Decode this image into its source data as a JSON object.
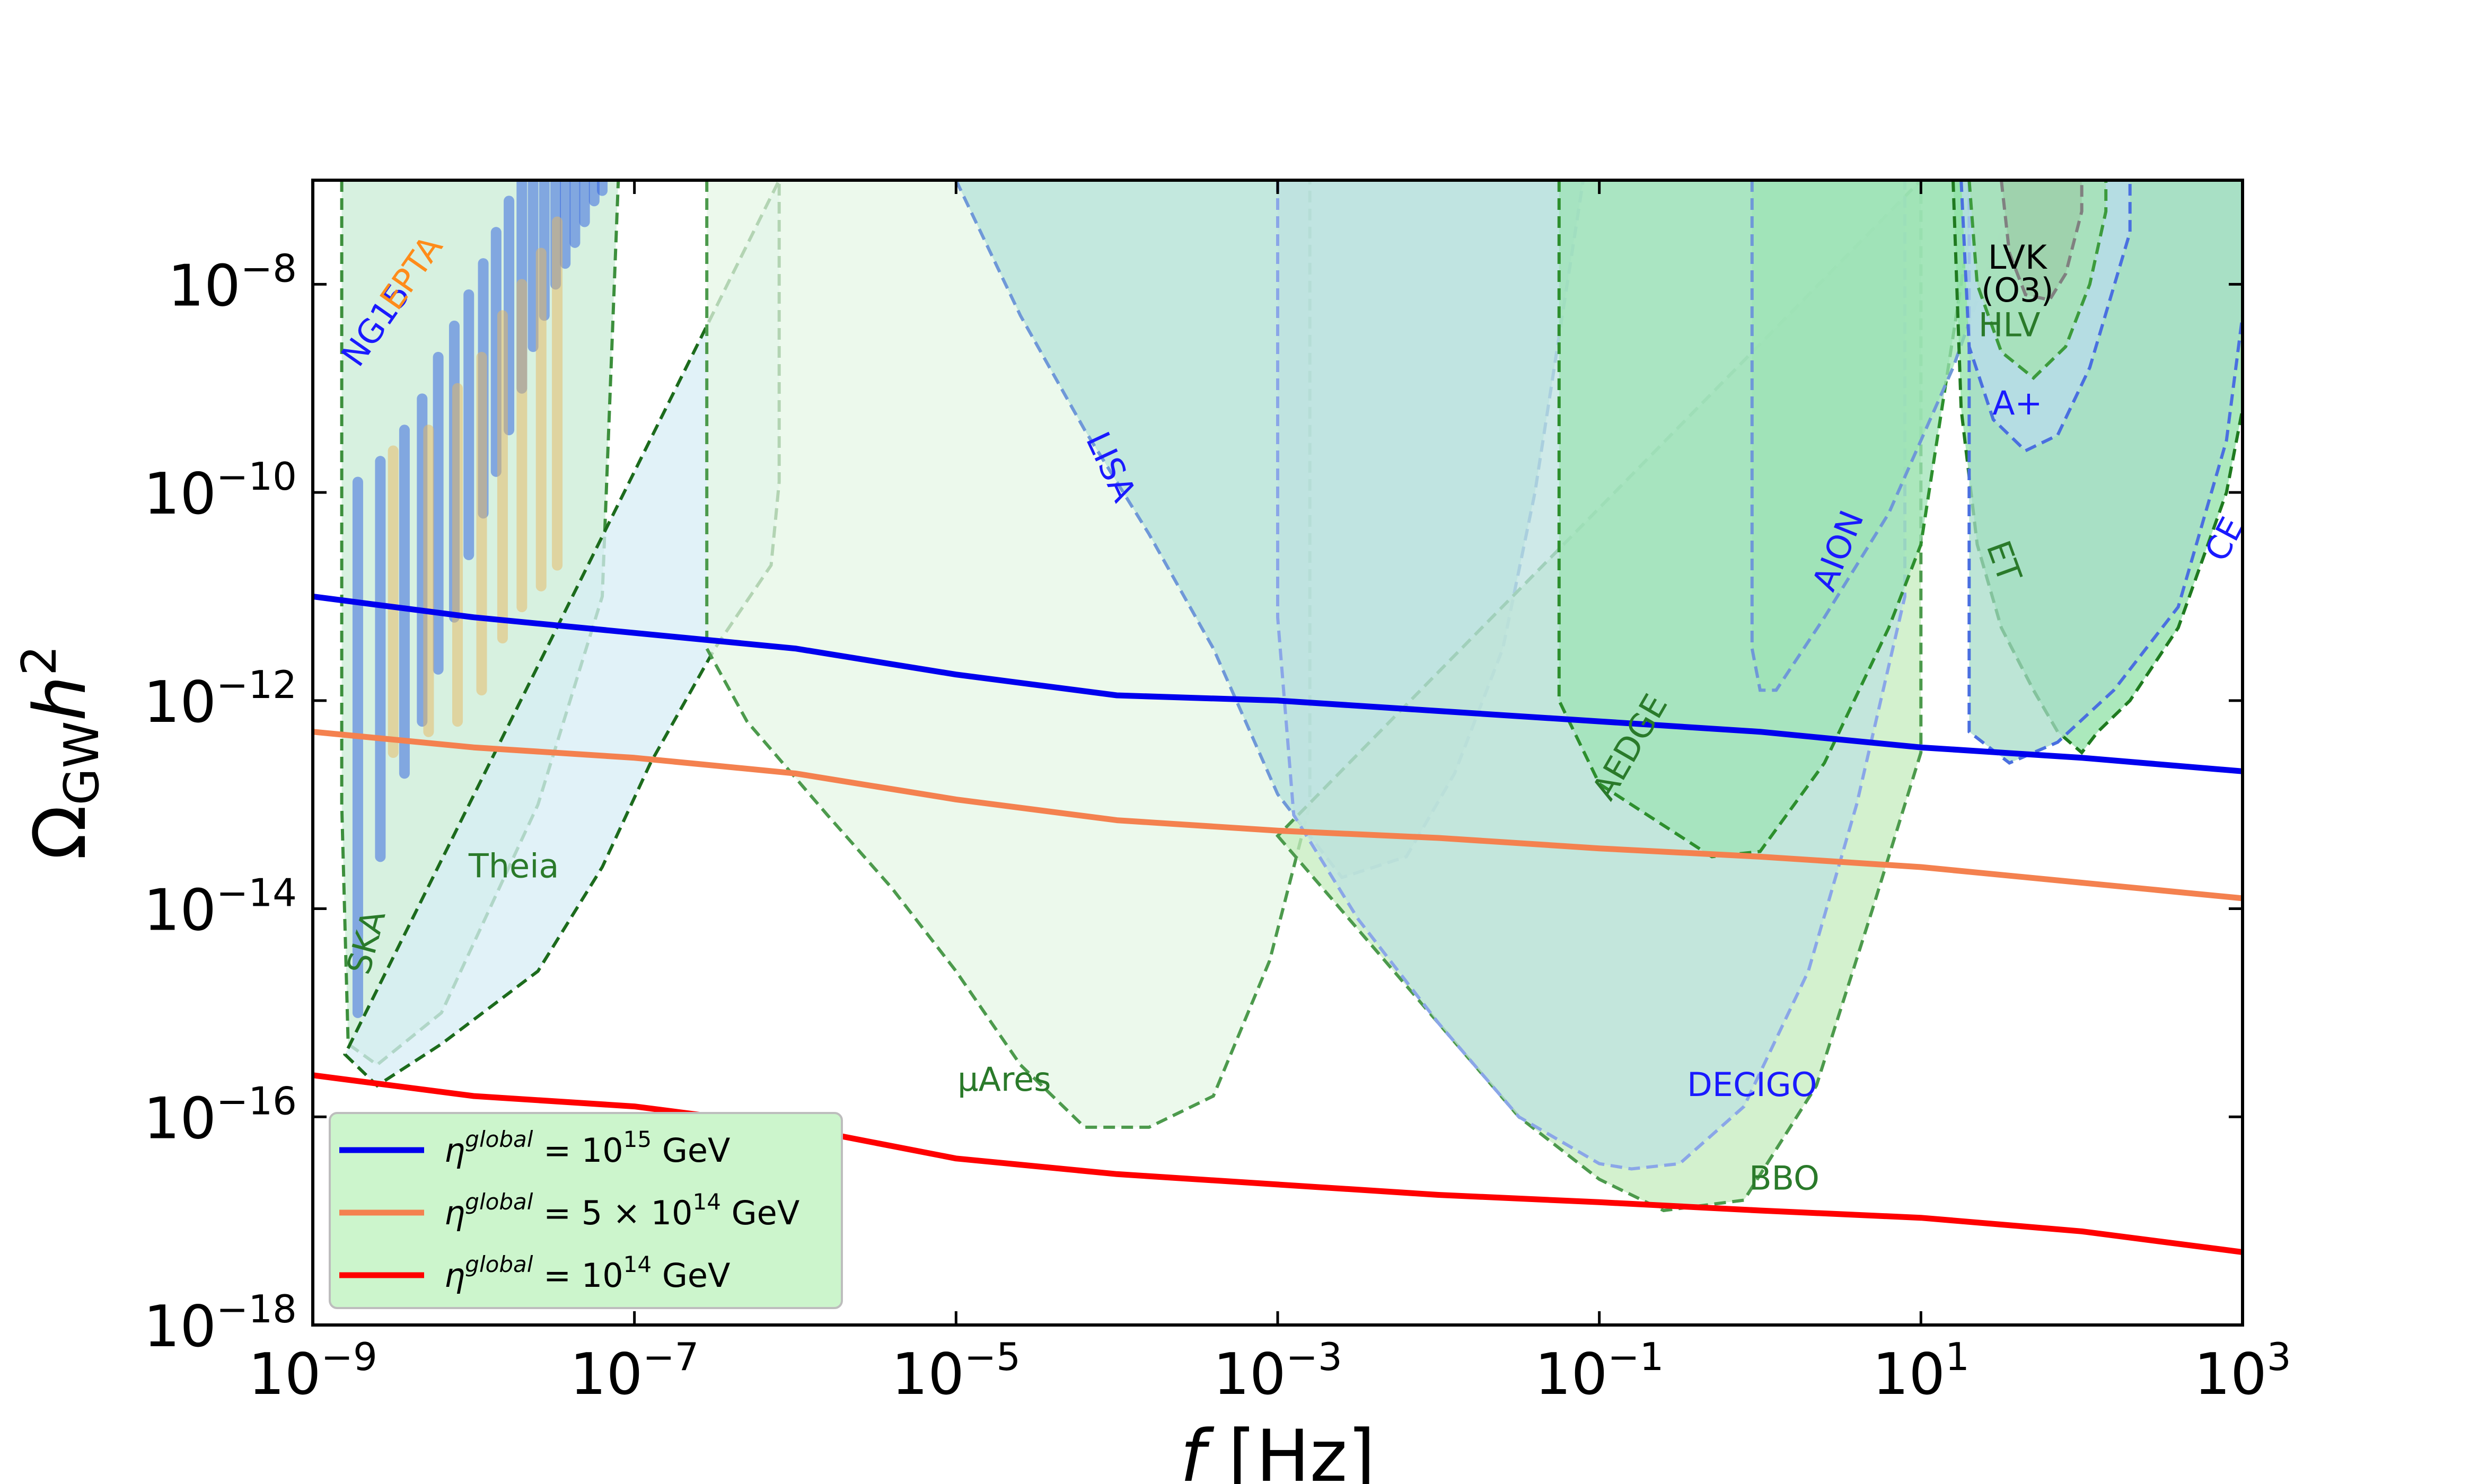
{
  "chart_data": {
    "type": "line",
    "xscale": "log10",
    "yscale": "log10",
    "xlim_log10": [
      -9,
      3
    ],
    "ylim_log10": [
      -18,
      -7.0
    ],
    "xlabel": "f [Hz]",
    "ylabel": "Ω_GW h²",
    "x_ticks": [
      {
        "base": "10",
        "exp": "−9",
        "value_log10": -9
      },
      {
        "base": "10",
        "exp": "−7",
        "value_log10": -7
      },
      {
        "base": "10",
        "exp": "−5",
        "value_log10": -5
      },
      {
        "base": "10",
        "exp": "−3",
        "value_log10": -3
      },
      {
        "base": "10",
        "exp": "−1",
        "value_log10": -1
      },
      {
        "base": "10",
        "exp": "1",
        "value_log10": 1
      },
      {
        "base": "10",
        "exp": "3",
        "value_log10": 3
      }
    ],
    "y_ticks": [
      {
        "base": "10",
        "exp": "−8",
        "value_log10": -8
      },
      {
        "base": "10",
        "exp": "−10",
        "value_log10": -10
      },
      {
        "base": "10",
        "exp": "−12",
        "value_log10": -12
      },
      {
        "base": "10",
        "exp": "−14",
        "value_log10": -14
      },
      {
        "base": "10",
        "exp": "−16",
        "value_log10": -16
      },
      {
        "base": "10",
        "exp": "−18",
        "value_log10": -18
      }
    ],
    "series": [
      {
        "name": "η^global = 10^15 GeV",
        "legend_math": "η",
        "legend_sup": "global",
        "legend_rest": " = 10",
        "legend_exp": "15",
        "legend_unit": " GeV",
        "color": "#0000ee",
        "x_log10": [
          -9,
          -8,
          -7,
          -6,
          -5,
          -4,
          -3,
          -2,
          -1,
          0,
          1,
          2,
          3
        ],
        "y_log10": [
          -11.0,
          -11.2,
          -11.35,
          -11.5,
          -11.75,
          -11.95,
          -12.0,
          -12.1,
          -12.2,
          -12.3,
          -12.45,
          -12.55,
          -12.68
        ]
      },
      {
        "name": "η^global = 5 × 10^14 GeV",
        "legend_math": "η",
        "legend_sup": "global",
        "legend_rest": " = 5 × 10",
        "legend_exp": "14",
        "legend_unit": " GeV",
        "color": "#f4814f",
        "x_log10": [
          -9,
          -8,
          -7,
          -6,
          -5,
          -4,
          -3,
          -2,
          -1,
          0,
          1,
          2,
          3
        ],
        "y_log10": [
          -12.3,
          -12.45,
          -12.55,
          -12.7,
          -12.95,
          -13.15,
          -13.25,
          -13.32,
          -13.42,
          -13.5,
          -13.6,
          -13.75,
          -13.9
        ]
      },
      {
        "name": "η^global = 10^14 GeV",
        "legend_math": "η",
        "legend_sup": "global",
        "legend_rest": " = 10",
        "legend_exp": "14",
        "legend_unit": " GeV",
        "color": "#ff0000",
        "x_log10": [
          -9,
          -8,
          -7,
          -6,
          -5,
          -4,
          -3,
          -2,
          -1,
          0,
          1,
          2,
          3
        ],
        "y_log10": [
          -15.6,
          -15.8,
          -15.9,
          -16.1,
          -16.4,
          -16.55,
          -16.65,
          -16.75,
          -16.82,
          -16.9,
          -16.97,
          -17.1,
          -17.3
        ]
      }
    ],
    "regions": [
      {
        "name": "SKA",
        "label": "SKA",
        "fill": "#c9ecd6",
        "stroke": "#3c8f3c",
        "label_color": "#2a7a2a",
        "label_at": [
          -8.6,
          -14.35
        ],
        "label_rot": -75,
        "x_log10": [
          -8.82,
          -8.82,
          -8.78,
          -8.6,
          -8.2,
          -7.6,
          -7.2,
          -7.1,
          -7.1
        ],
        "y_log10": [
          -7.0,
          -13.0,
          -15.3,
          -15.5,
          -15.0,
          -13.0,
          -11.0,
          -7.0,
          -7.0
        ]
      },
      {
        "name": "Theia",
        "label": "Theia",
        "fill": "#d7edf6",
        "stroke": "#1c6b1c",
        "label_color": "#2a7a2a",
        "label_at": [
          -7.75,
          -13.7
        ],
        "label_rot": 0,
        "x_log10": [
          -8.8,
          -8.6,
          -8.2,
          -7.6,
          -7.2,
          -6.9,
          -6.5,
          -6.15,
          -6.1,
          -6.1
        ],
        "y_log10": [
          -15.4,
          -15.7,
          -15.3,
          -14.6,
          -13.6,
          -12.6,
          -11.5,
          -10.7,
          -9.9,
          -7.0
        ]
      },
      {
        "name": "μAres",
        "label": "μAres",
        "fill": "#e6f7e6",
        "stroke": "#4c9a4c",
        "label_color": "#2a7a2a",
        "label_at": [
          -4.7,
          -15.75
        ],
        "label_rot": 0,
        "x_log10": [
          -6.55,
          -6.55,
          -6.3,
          -5.8,
          -5.4,
          -5.0,
          -4.6,
          -4.2,
          -3.8,
          -3.4,
          -3.05,
          -2.8,
          -2.8
        ],
        "y_log10": [
          -7.0,
          -11.5,
          -12.2,
          -13.1,
          -13.8,
          -14.6,
          -15.5,
          -16.1,
          -16.1,
          -15.8,
          -14.5,
          -13.0,
          -7.0
        ]
      },
      {
        "name": "LISA",
        "label": "LISA",
        "fill": "#b5e2da",
        "stroke": "#6f98d8",
        "label_color": "#1a1aff",
        "label_at": [
          -4.1,
          -9.8
        ],
        "label_rot": 65,
        "x_log10": [
          -5.0,
          -4.6,
          -4.2,
          -3.8,
          -3.4,
          -3.0,
          -2.6,
          -2.2,
          -1.9,
          -1.6,
          -1.4,
          -1.2,
          -1.1
        ],
        "y_log10": [
          -7.0,
          -8.3,
          -9.4,
          -10.4,
          -11.5,
          -12.9,
          -13.7,
          -13.5,
          -12.7,
          -11.5,
          -10.0,
          -8.0,
          -7.0
        ]
      },
      {
        "name": "BBO",
        "label": "BBO",
        "fill": "#c4ecbe",
        "stroke": "#4c9a4c",
        "label_color": "#2a7a2a",
        "label_at": [
          0.15,
          -16.7
        ],
        "label_rot": 0,
        "x_log10": [
          -3.0,
          -2.5,
          -2.0,
          -1.5,
          -1.0,
          -0.6,
          -0.1,
          0.35,
          0.7,
          1.0,
          1.0
        ],
        "y_log10": [
          -13.3,
          -14.2,
          -15.1,
          -16.0,
          -16.6,
          -16.9,
          -16.8,
          -15.7,
          -14.0,
          -12.5,
          -7.0
        ]
      },
      {
        "name": "DECIGO",
        "label": "DECIGO",
        "fill": "#bde2e0",
        "stroke": "#8aa6e8",
        "label_color": "#1a1aff",
        "label_at": [
          -0.05,
          -15.8
        ],
        "label_rot": 0,
        "x_log10": [
          -3.0,
          -3.0,
          -2.9,
          -2.5,
          -2.0,
          -1.5,
          -1.0,
          -0.8,
          -0.5,
          -0.1,
          0.3,
          0.6,
          0.9,
          0.9
        ],
        "y_log10": [
          -7.0,
          -11.2,
          -13.1,
          -14.1,
          -15.1,
          -16.0,
          -16.45,
          -16.5,
          -16.45,
          -15.9,
          -14.6,
          -13.0,
          -11.0,
          -7.0
        ]
      },
      {
        "name": "AEDGE",
        "label": "AEDGE",
        "fill": "#9de3b6",
        "stroke": "#2d8f2d",
        "label_color": "#2a7a2a",
        "label_at": [
          -0.75,
          -12.5
        ],
        "label_rot": -60,
        "x_log10": [
          -1.25,
          -1.25,
          -1.0,
          -0.6,
          -0.3,
          0.0,
          0.4,
          0.8,
          1.0,
          1.2,
          1.3,
          1.3
        ],
        "y_log10": [
          -7.0,
          -12.0,
          -12.8,
          -13.2,
          -13.5,
          -13.45,
          -12.6,
          -11.3,
          -10.5,
          -8.5,
          -7.5,
          -7.0
        ]
      },
      {
        "name": "AION",
        "label": "AION",
        "fill": "#9de3b6",
        "stroke": "#6f98d8",
        "label_color": "#1a1aff",
        "label_at": [
          0.55,
          -10.6
        ],
        "label_rot": -68,
        "x_log10": [
          -0.05,
          -0.05,
          0.0,
          0.1,
          0.4,
          0.8,
          1.2,
          1.5,
          1.5
        ],
        "y_log10": [
          -7.0,
          -11.5,
          -11.9,
          -11.9,
          -11.2,
          -10.2,
          -8.8,
          -7.5,
          -7.0
        ]
      },
      {
        "name": "ET",
        "label": "ET",
        "fill": "#8fe1a5",
        "stroke": "#1f7a1f",
        "label_color": "#2a7a2a",
        "label_at": [
          1.45,
          -10.7
        ],
        "label_rot": 70,
        "x_log10": [
          1.2,
          1.25,
          1.35,
          1.5,
          1.7,
          1.85,
          2.0,
          2.1,
          2.3,
          2.6,
          2.9,
          3.0,
          3.0
        ],
        "y_log10": [
          -7.0,
          -9.2,
          -10.5,
          -11.3,
          -11.9,
          -12.3,
          -12.5,
          -12.3,
          -12.0,
          -11.3,
          -10.0,
          -9.2,
          -7.0
        ]
      },
      {
        "name": "CE",
        "label": "CE",
        "fill": "#a7dcc8",
        "stroke": "#4a6fe0",
        "label_color": "#1a1aff",
        "label_at": [
          2.95,
          -10.5
        ],
        "label_rot": -62,
        "x_log10": [
          1.3,
          1.3,
          1.55,
          1.85,
          2.2,
          2.6,
          2.9,
          3.0,
          3.0
        ],
        "y_log10": [
          -7.0,
          -12.3,
          -12.6,
          -12.4,
          -11.9,
          -11.1,
          -9.5,
          -8.3,
          -7.0
        ]
      },
      {
        "name": "A+",
        "label": "A+",
        "fill": "#b9dcec",
        "stroke": "#4a6fe0",
        "label_color": "#1a1aff",
        "label_at": [
          1.6,
          -9.25
        ],
        "label_rot": 0,
        "x_log10": [
          1.25,
          1.3,
          1.45,
          1.65,
          1.85,
          2.05,
          2.3,
          2.3
        ],
        "y_log10": [
          -7.0,
          -8.6,
          -9.3,
          -9.6,
          -9.45,
          -8.8,
          -7.5,
          -7.0
        ]
      },
      {
        "name": "HLV",
        "label": "HLV",
        "fill": "#a4e2b0",
        "stroke": "#3c9b3c",
        "label_color": "#2a7a2a",
        "label_at": [
          1.55,
          -8.5
        ],
        "label_rot": 0,
        "x_log10": [
          1.3,
          1.35,
          1.5,
          1.7,
          1.9,
          2.05,
          2.15,
          2.15
        ],
        "y_log10": [
          -7.0,
          -8.0,
          -8.65,
          -8.9,
          -8.6,
          -8.0,
          -7.3,
          -7.0
        ]
      },
      {
        "name": "LVK (O3)",
        "label": "LVK",
        "label2": "(O3)",
        "fill": "#9ccca8",
        "stroke": "#808080",
        "label_color": "#000000",
        "label_at": [
          1.6,
          -7.85
        ],
        "label_rot": 0,
        "x_log10": [
          1.5,
          1.55,
          1.65,
          1.8,
          1.9,
          2.0,
          2.0
        ],
        "y_log10": [
          -7.0,
          -7.7,
          -8.1,
          -8.15,
          -7.9,
          -7.3,
          -7.0
        ]
      }
    ],
    "pta": [
      {
        "name": "NG15",
        "label": "NG15",
        "color": "#2b5de0",
        "label_color": "#1a1aff",
        "label_at": [
          -8.55,
          -8.45
        ],
        "label_rot": -55,
        "x_log10": [
          -8.72,
          -8.58,
          -8.43,
          -8.32,
          -8.22,
          -8.12,
          -8.03,
          -7.94,
          -7.86,
          -7.78,
          -7.7,
          -7.63,
          -7.56,
          -7.49,
          -7.43,
          -7.37,
          -7.31,
          -7.25,
          -7.2
        ],
        "y_low_log10": [
          -15.0,
          -13.5,
          -12.7,
          -12.2,
          -11.7,
          -11.2,
          -10.6,
          -10.2,
          -9.8,
          -9.4,
          -9.0,
          -8.6,
          -8.3,
          -8.0,
          -7.8,
          -7.6,
          -7.4,
          -7.2,
          -7.1
        ],
        "y_high_log10": [
          -9.9,
          -9.7,
          -9.4,
          -9.1,
          -8.7,
          -8.4,
          -8.1,
          -7.8,
          -7.5,
          -7.2,
          -7.0,
          -7.0,
          -7.0,
          -7.0,
          -7.0,
          -7.0,
          -7.0,
          -7.0,
          -7.0
        ]
      },
      {
        "name": "EPTA",
        "label": "EPTA",
        "color": "#e8b860",
        "label_color": "#ff8c1a",
        "label_at": [
          -8.33,
          -7.95
        ],
        "label_rot": -55,
        "x_log10": [
          -8.5,
          -8.28,
          -8.1,
          -7.95,
          -7.82,
          -7.7,
          -7.58,
          -7.48
        ],
        "y_low_log10": [
          -12.5,
          -12.3,
          -12.2,
          -11.9,
          -11.4,
          -11.1,
          -10.9,
          -10.7
        ],
        "y_high_log10": [
          -9.6,
          -9.4,
          -9.0,
          -8.7,
          -8.3,
          -8.0,
          -7.7,
          -7.4
        ]
      }
    ],
    "legend": {
      "position": "lower-left"
    }
  }
}
